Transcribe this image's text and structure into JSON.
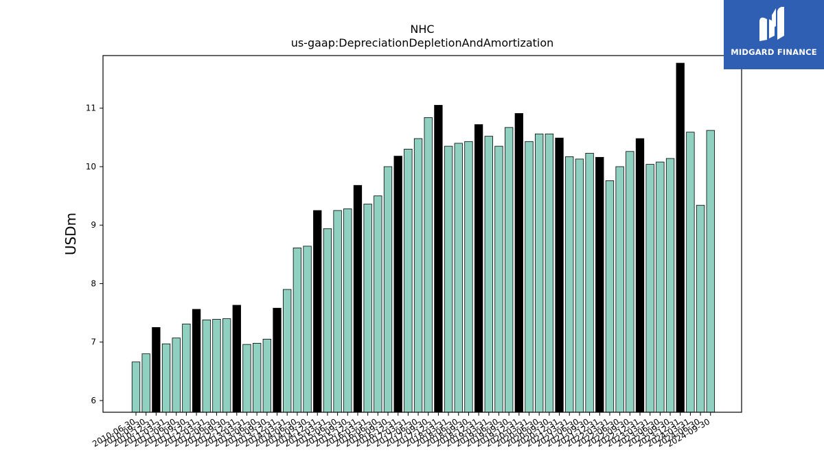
{
  "chart_data": {
    "type": "bar",
    "title": "NHC",
    "subtitle": "us-gaap:DepreciationDepletionAndAmortization",
    "xlabel": "",
    "ylabel": "USDm",
    "ylim": [
      5.8,
      11.9
    ],
    "yticks": [
      6,
      7,
      8,
      9,
      10,
      11
    ],
    "grid": false,
    "categories": [
      "2010-06-30",
      "2010-09-30",
      "2010-12-31",
      "2011-03-31",
      "2011-06-30",
      "2011-09-30",
      "2011-12-31",
      "2012-03-31",
      "2012-06-30",
      "2012-09-30",
      "2012-12-31",
      "2013-03-31",
      "2013-06-30",
      "2013-09-30",
      "2013-12-31",
      "2014-03-31",
      "2014-06-30",
      "2014-09-30",
      "2014-12-31",
      "2015-03-31",
      "2015-06-30",
      "2015-09-30",
      "2015-12-31",
      "2016-03-31",
      "2016-06-30",
      "2016-09-30",
      "2016-12-31",
      "2017-03-31",
      "2017-06-30",
      "2017-09-30",
      "2017-12-31",
      "2018-03-31",
      "2018-06-30",
      "2018-09-30",
      "2018-12-31",
      "2019-03-31",
      "2019-06-30",
      "2019-09-30",
      "2019-12-31",
      "2020-03-31",
      "2020-06-30",
      "2020-09-30",
      "2020-12-31",
      "2021-03-31",
      "2021-06-30",
      "2021-09-30",
      "2021-12-31",
      "2022-03-31",
      "2022-06-30",
      "2022-09-30",
      "2022-12-31",
      "2023-03-31",
      "2023-06-30",
      "2023-09-30",
      "2023-12-31",
      "2024-03-31",
      "2024-06-30",
      "2024-09-30"
    ],
    "values": [
      6.66,
      6.8,
      7.25,
      6.97,
      7.07,
      7.31,
      7.56,
      7.38,
      7.39,
      7.4,
      7.63,
      6.96,
      6.98,
      7.05,
      7.58,
      7.9,
      8.61,
      8.64,
      9.25,
      8.94,
      9.25,
      9.28,
      9.68,
      9.36,
      9.5,
      10.0,
      10.18,
      10.3,
      10.48,
      10.84,
      11.05,
      10.35,
      10.4,
      10.43,
      10.72,
      10.52,
      10.35,
      10.67,
      10.91,
      10.43,
      10.56,
      10.56,
      10.49,
      10.17,
      10.13,
      10.23,
      10.16,
      9.76,
      10.0,
      10.26,
      10.48,
      10.04,
      10.08,
      10.14,
      11.77,
      10.59,
      9.34,
      10.62
    ],
    "highlight": [
      2,
      6,
      10,
      14,
      18,
      22,
      26,
      30,
      34,
      38,
      42,
      46,
      50,
      54
    ],
    "colors": {
      "bar": "#8fd0c0",
      "highlight": "#000000",
      "edge": "#000000"
    }
  },
  "logo": {
    "text": "MIDGARD FINANCE",
    "icon": "midgard-logo-icon",
    "background": "#2f5fb3"
  }
}
